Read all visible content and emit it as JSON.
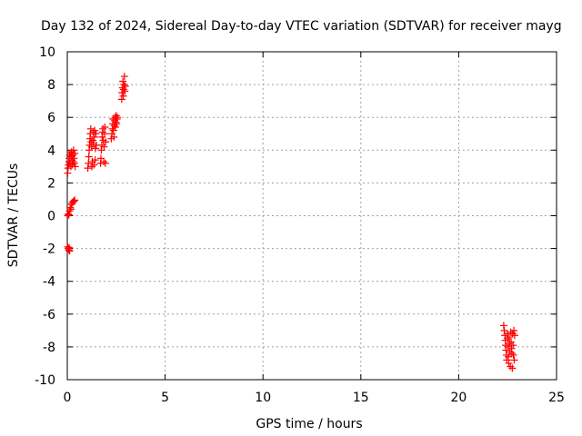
{
  "chart_data": {
    "type": "scatter",
    "title": "Day 132 of 2024, Sidereal Day-to-day VTEC variation (SDTVAR) for receiver mayg",
    "xlabel": "GPS time / hours",
    "ylabel": "SDTVAR / TECUs",
    "xlim": [
      0,
      25
    ],
    "ylim": [
      -10,
      10
    ],
    "xticks": [
      0,
      5,
      10,
      15,
      20,
      25
    ],
    "yticks": [
      -10,
      -8,
      -6,
      -4,
      -2,
      0,
      2,
      4,
      6,
      8,
      10
    ],
    "grid": true,
    "marker": "+",
    "marker_color": "#ff0000",
    "grid_color": "#a0a0a0",
    "series": [
      {
        "name": "SDTVAR",
        "points": [
          [
            0.02,
            -1.9
          ],
          [
            0.05,
            -2.0
          ],
          [
            0.08,
            -2.1
          ],
          [
            0.1,
            -1.95
          ],
          [
            0.12,
            -2.15
          ],
          [
            0.02,
            0.0
          ],
          [
            0.05,
            0.1
          ],
          [
            0.08,
            0.05
          ],
          [
            0.12,
            0.3
          ],
          [
            0.15,
            0.5
          ],
          [
            0.18,
            0.4
          ],
          [
            0.22,
            0.7
          ],
          [
            0.26,
            0.8
          ],
          [
            0.3,
            0.85
          ],
          [
            0.34,
            0.9
          ],
          [
            0.38,
            0.95
          ],
          [
            0.02,
            2.6
          ],
          [
            0.04,
            2.9
          ],
          [
            0.06,
            3.1
          ],
          [
            0.08,
            3.3
          ],
          [
            0.1,
            3.5
          ],
          [
            0.12,
            3.7
          ],
          [
            0.14,
            3.2
          ],
          [
            0.16,
            3.8
          ],
          [
            0.18,
            3.0
          ],
          [
            0.2,
            3.6
          ],
          [
            0.22,
            3.9
          ],
          [
            0.24,
            3.4
          ],
          [
            0.26,
            3.1
          ],
          [
            0.28,
            3.7
          ],
          [
            0.3,
            3.3
          ],
          [
            0.32,
            4.0
          ],
          [
            0.34,
            3.5
          ],
          [
            0.36,
            3.2
          ],
          [
            0.38,
            3.8
          ],
          [
            0.4,
            3.0
          ],
          [
            1.05,
            2.9
          ],
          [
            1.08,
            3.2
          ],
          [
            1.1,
            3.6
          ],
          [
            1.12,
            4.0
          ],
          [
            1.14,
            4.3
          ],
          [
            1.16,
            4.7
          ],
          [
            1.18,
            5.0
          ],
          [
            1.2,
            5.3
          ],
          [
            1.22,
            4.5
          ],
          [
            1.24,
            4.2
          ],
          [
            1.26,
            3.0
          ],
          [
            1.28,
            3.3
          ],
          [
            1.3,
            4.6
          ],
          [
            1.32,
            5.1
          ],
          [
            1.34,
            4.4
          ],
          [
            1.36,
            3.1
          ],
          [
            1.38,
            4.8
          ],
          [
            1.4,
            5.2
          ],
          [
            1.42,
            3.4
          ],
          [
            1.44,
            4.1
          ],
          [
            1.46,
            5.0
          ],
          [
            1.48,
            4.3
          ],
          [
            1.7,
            3.2
          ],
          [
            1.72,
            3.5
          ],
          [
            1.74,
            4.0
          ],
          [
            1.76,
            4.3
          ],
          [
            1.78,
            4.8
          ],
          [
            1.8,
            5.1
          ],
          [
            1.82,
            5.3
          ],
          [
            1.84,
            4.6
          ],
          [
            1.86,
            3.3
          ],
          [
            1.88,
            4.2
          ],
          [
            1.9,
            5.0
          ],
          [
            1.92,
            5.4
          ],
          [
            1.94,
            3.2
          ],
          [
            1.96,
            4.5
          ],
          [
            2.25,
            4.7
          ],
          [
            2.28,
            5.0
          ],
          [
            2.3,
            5.3
          ],
          [
            2.32,
            5.6
          ],
          [
            2.34,
            5.9
          ],
          [
            2.36,
            5.2
          ],
          [
            2.38,
            4.8
          ],
          [
            2.4,
            5.5
          ],
          [
            2.42,
            5.8
          ],
          [
            2.44,
            6.0
          ],
          [
            2.46,
            5.4
          ],
          [
            2.48,
            5.7
          ],
          [
            2.5,
            6.1
          ],
          [
            2.52,
            5.6
          ],
          [
            2.54,
            5.9
          ],
          [
            2.56,
            6.0
          ],
          [
            2.78,
            7.1
          ],
          [
            2.8,
            7.5
          ],
          [
            2.82,
            7.8
          ],
          [
            2.84,
            8.2
          ],
          [
            2.86,
            7.3
          ],
          [
            2.88,
            7.7
          ],
          [
            2.9,
            8.0
          ],
          [
            2.92,
            8.5
          ],
          [
            2.94,
            7.6
          ],
          [
            2.96,
            7.9
          ],
          [
            22.3,
            -6.7
          ],
          [
            22.33,
            -7.0
          ],
          [
            22.36,
            -7.3
          ],
          [
            22.38,
            -7.6
          ],
          [
            22.4,
            -7.9
          ],
          [
            22.42,
            -8.2
          ],
          [
            22.44,
            -8.5
          ],
          [
            22.46,
            -8.8
          ],
          [
            22.48,
            -7.2
          ],
          [
            22.5,
            -7.5
          ],
          [
            22.52,
            -8.0
          ],
          [
            22.54,
            -8.6
          ],
          [
            22.56,
            -9.0
          ],
          [
            22.58,
            -7.4
          ],
          [
            22.6,
            -7.8
          ],
          [
            22.62,
            -8.3
          ],
          [
            22.64,
            -9.2
          ],
          [
            22.66,
            -7.1
          ],
          [
            22.68,
            -7.7
          ],
          [
            22.7,
            -8.1
          ],
          [
            22.72,
            -8.4
          ],
          [
            22.74,
            -9.3
          ],
          [
            22.76,
            -7.2
          ],
          [
            22.78,
            -7.9
          ],
          [
            22.8,
            -8.5
          ],
          [
            22.82,
            -7.0
          ],
          [
            22.84,
            -8.8
          ],
          [
            22.86,
            -7.3
          ]
        ]
      }
    ]
  }
}
